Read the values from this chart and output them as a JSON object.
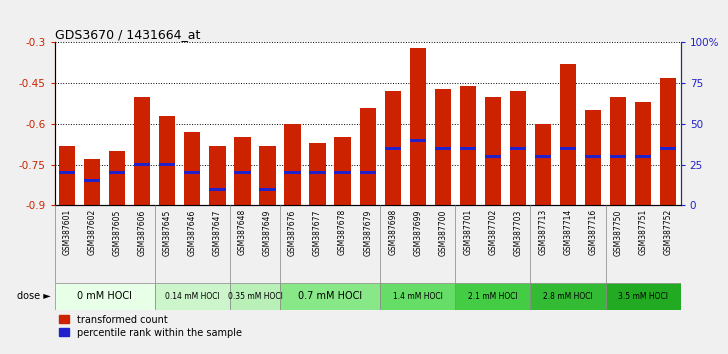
{
  "title": "GDS3670 / 1431664_at",
  "samples": [
    "GSM387601",
    "GSM387602",
    "GSM387605",
    "GSM387606",
    "GSM387645",
    "GSM387646",
    "GSM387647",
    "GSM387648",
    "GSM387649",
    "GSM387676",
    "GSM387677",
    "GSM387678",
    "GSM387679",
    "GSM387698",
    "GSM387699",
    "GSM387700",
    "GSM387701",
    "GSM387702",
    "GSM387703",
    "GSM387713",
    "GSM387714",
    "GSM387716",
    "GSM387750",
    "GSM387751",
    "GSM387752"
  ],
  "transformed_counts": [
    -0.68,
    -0.73,
    -0.7,
    -0.5,
    -0.57,
    -0.63,
    -0.68,
    -0.65,
    -0.68,
    -0.6,
    -0.67,
    -0.65,
    -0.54,
    -0.48,
    -0.32,
    -0.47,
    -0.46,
    -0.5,
    -0.48,
    -0.6,
    -0.38,
    -0.55,
    -0.5,
    -0.52,
    -0.43
  ],
  "percentile_ranks": [
    20,
    15,
    20,
    25,
    25,
    20,
    10,
    20,
    10,
    20,
    20,
    20,
    20,
    35,
    40,
    35,
    35,
    30,
    35,
    30,
    35,
    30,
    30,
    30,
    35
  ],
  "dose_groups": [
    {
      "label": "0 mM HOCl",
      "start": 0,
      "end": 4,
      "color": "#e8ffe8"
    },
    {
      "label": "0.14 mM HOCl",
      "start": 4,
      "end": 7,
      "color": "#ccf5cc"
    },
    {
      "label": "0.35 mM HOCl",
      "start": 7,
      "end": 9,
      "color": "#b8f0b8"
    },
    {
      "label": "0.7 mM HOCl",
      "start": 9,
      "end": 13,
      "color": "#88e888"
    },
    {
      "label": "1.4 mM HOCl",
      "start": 13,
      "end": 16,
      "color": "#66dd66"
    },
    {
      "label": "2.1 mM HOCl",
      "start": 16,
      "end": 19,
      "color": "#44cc44"
    },
    {
      "label": "2.8 mM HOCl",
      "start": 19,
      "end": 22,
      "color": "#33bb33"
    },
    {
      "label": "3.5 mM HOCl",
      "start": 22,
      "end": 25,
      "color": "#22aa22"
    }
  ],
  "bar_color": "#cc2200",
  "percentile_color": "#2222cc",
  "ylim_left": [
    -0.9,
    -0.3
  ],
  "ylim_right": [
    0,
    100
  ],
  "yticks_left": [
    -0.9,
    -0.75,
    -0.6,
    -0.45,
    -0.3
  ],
  "yticks_right": [
    0,
    25,
    50,
    75,
    100
  ],
  "plot_bg": "#ffffff",
  "fig_bg": "#f0f0f0",
  "xtick_area_color": "#d8d8d8"
}
